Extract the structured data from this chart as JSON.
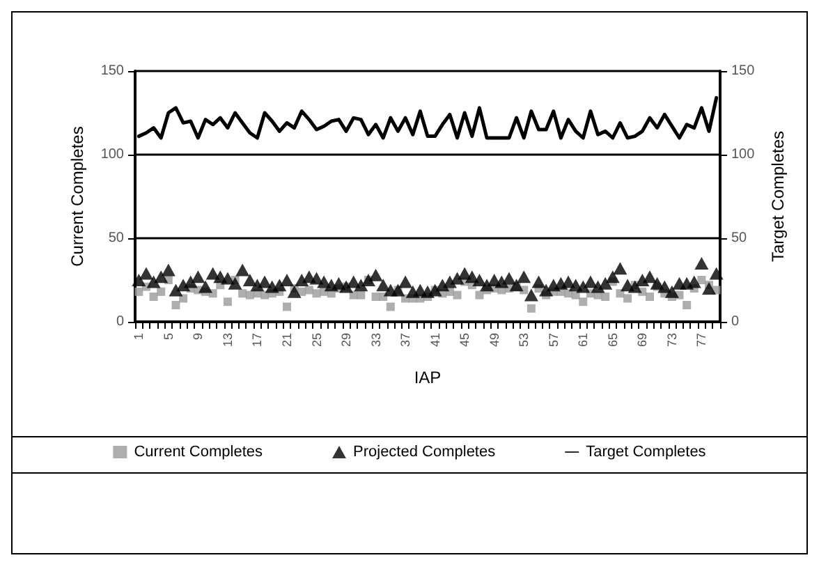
{
  "chart_data": {
    "type": "scatter",
    "xlabel": "IAP",
    "ylabel": "Current Completes",
    "y2label": "Target Completes",
    "categories": [
      "1",
      null,
      null,
      null,
      "5",
      null,
      null,
      null,
      "9",
      null,
      null,
      null,
      "13",
      null,
      null,
      null,
      "17",
      null,
      null,
      null,
      "21",
      null,
      null,
      null,
      "25",
      null,
      null,
      null,
      "29",
      null,
      null,
      null,
      "33",
      null,
      null,
      null,
      "37",
      null,
      null,
      null,
      "41",
      null,
      null,
      null,
      "45",
      null,
      null,
      null,
      "49",
      null,
      null,
      null,
      "53",
      null,
      null,
      null,
      "57",
      null,
      null,
      null,
      "61",
      null,
      null,
      null,
      "65",
      null,
      null,
      null,
      "69",
      null,
      null,
      null,
      "73",
      null,
      null,
      null,
      "77",
      null,
      null
    ],
    "series": [
      {
        "name": "Current Completes",
        "marker": "square",
        "color": "#9a9a9a",
        "values": [
          18,
          21,
          15,
          18,
          25,
          10,
          14,
          20,
          19,
          18,
          17,
          22,
          12,
          25,
          17,
          16,
          17,
          16,
          17,
          18,
          9,
          20,
          18,
          19,
          17,
          18,
          17,
          20,
          21,
          16,
          16,
          25,
          15,
          15,
          9,
          19,
          14,
          14,
          14,
          15,
          19,
          17,
          18,
          16,
          24,
          22,
          16,
          19,
          20,
          19,
          20,
          21,
          19,
          8,
          20,
          16,
          18,
          18,
          17,
          16,
          12,
          17,
          16,
          15,
          24,
          17,
          14,
          22,
          18,
          15,
          21,
          17,
          15,
          16,
          10,
          20,
          25,
          22,
          19
        ]
      },
      {
        "name": "Projected Completes",
        "marker": "triangle",
        "color": "#000000",
        "values": [
          25,
          29,
          24,
          27,
          31,
          19,
          22,
          24,
          27,
          21,
          29,
          27,
          26,
          23,
          31,
          25,
          22,
          24,
          21,
          22,
          25,
          18,
          25,
          27,
          26,
          24,
          22,
          23,
          21,
          24,
          22,
          25,
          28,
          22,
          19,
          19,
          24,
          18,
          19,
          18,
          19,
          22,
          24,
          26,
          29,
          27,
          25,
          22,
          25,
          24,
          26,
          22,
          27,
          16,
          24,
          19,
          22,
          23,
          24,
          22,
          21,
          24,
          21,
          23,
          27,
          32,
          22,
          21,
          25,
          27,
          23,
          21,
          18,
          23,
          23,
          24,
          35,
          20,
          29
        ]
      },
      {
        "name": "Target Completes",
        "type": "line",
        "marker": "none",
        "axis": "y2",
        "color": "#000000",
        "values": [
          111,
          113,
          116,
          110,
          125,
          128,
          119,
          120,
          110,
          121,
          118,
          122,
          116,
          125,
          119,
          113,
          110,
          125,
          120,
          114,
          119,
          116,
          126,
          121,
          115,
          117,
          120,
          121,
          114,
          122,
          121,
          112,
          118,
          110,
          122,
          114,
          122,
          112,
          126,
          111,
          111,
          118,
          124,
          110,
          125,
          111,
          128,
          110,
          110,
          110,
          110,
          122,
          110,
          126,
          115,
          115,
          126,
          110,
          121,
          114,
          110,
          126,
          112,
          114,
          110,
          119,
          110,
          111,
          114,
          122,
          116,
          124,
          117,
          110,
          118,
          116,
          128,
          114,
          134
        ]
      }
    ],
    "ylim": [
      0,
      150
    ],
    "yticks": [
      0,
      50,
      100,
      150
    ],
    "y2lim": [
      0,
      150
    ],
    "y2ticks": [
      0,
      50,
      100,
      150
    ],
    "grid": "y",
    "legend": "bottom"
  }
}
